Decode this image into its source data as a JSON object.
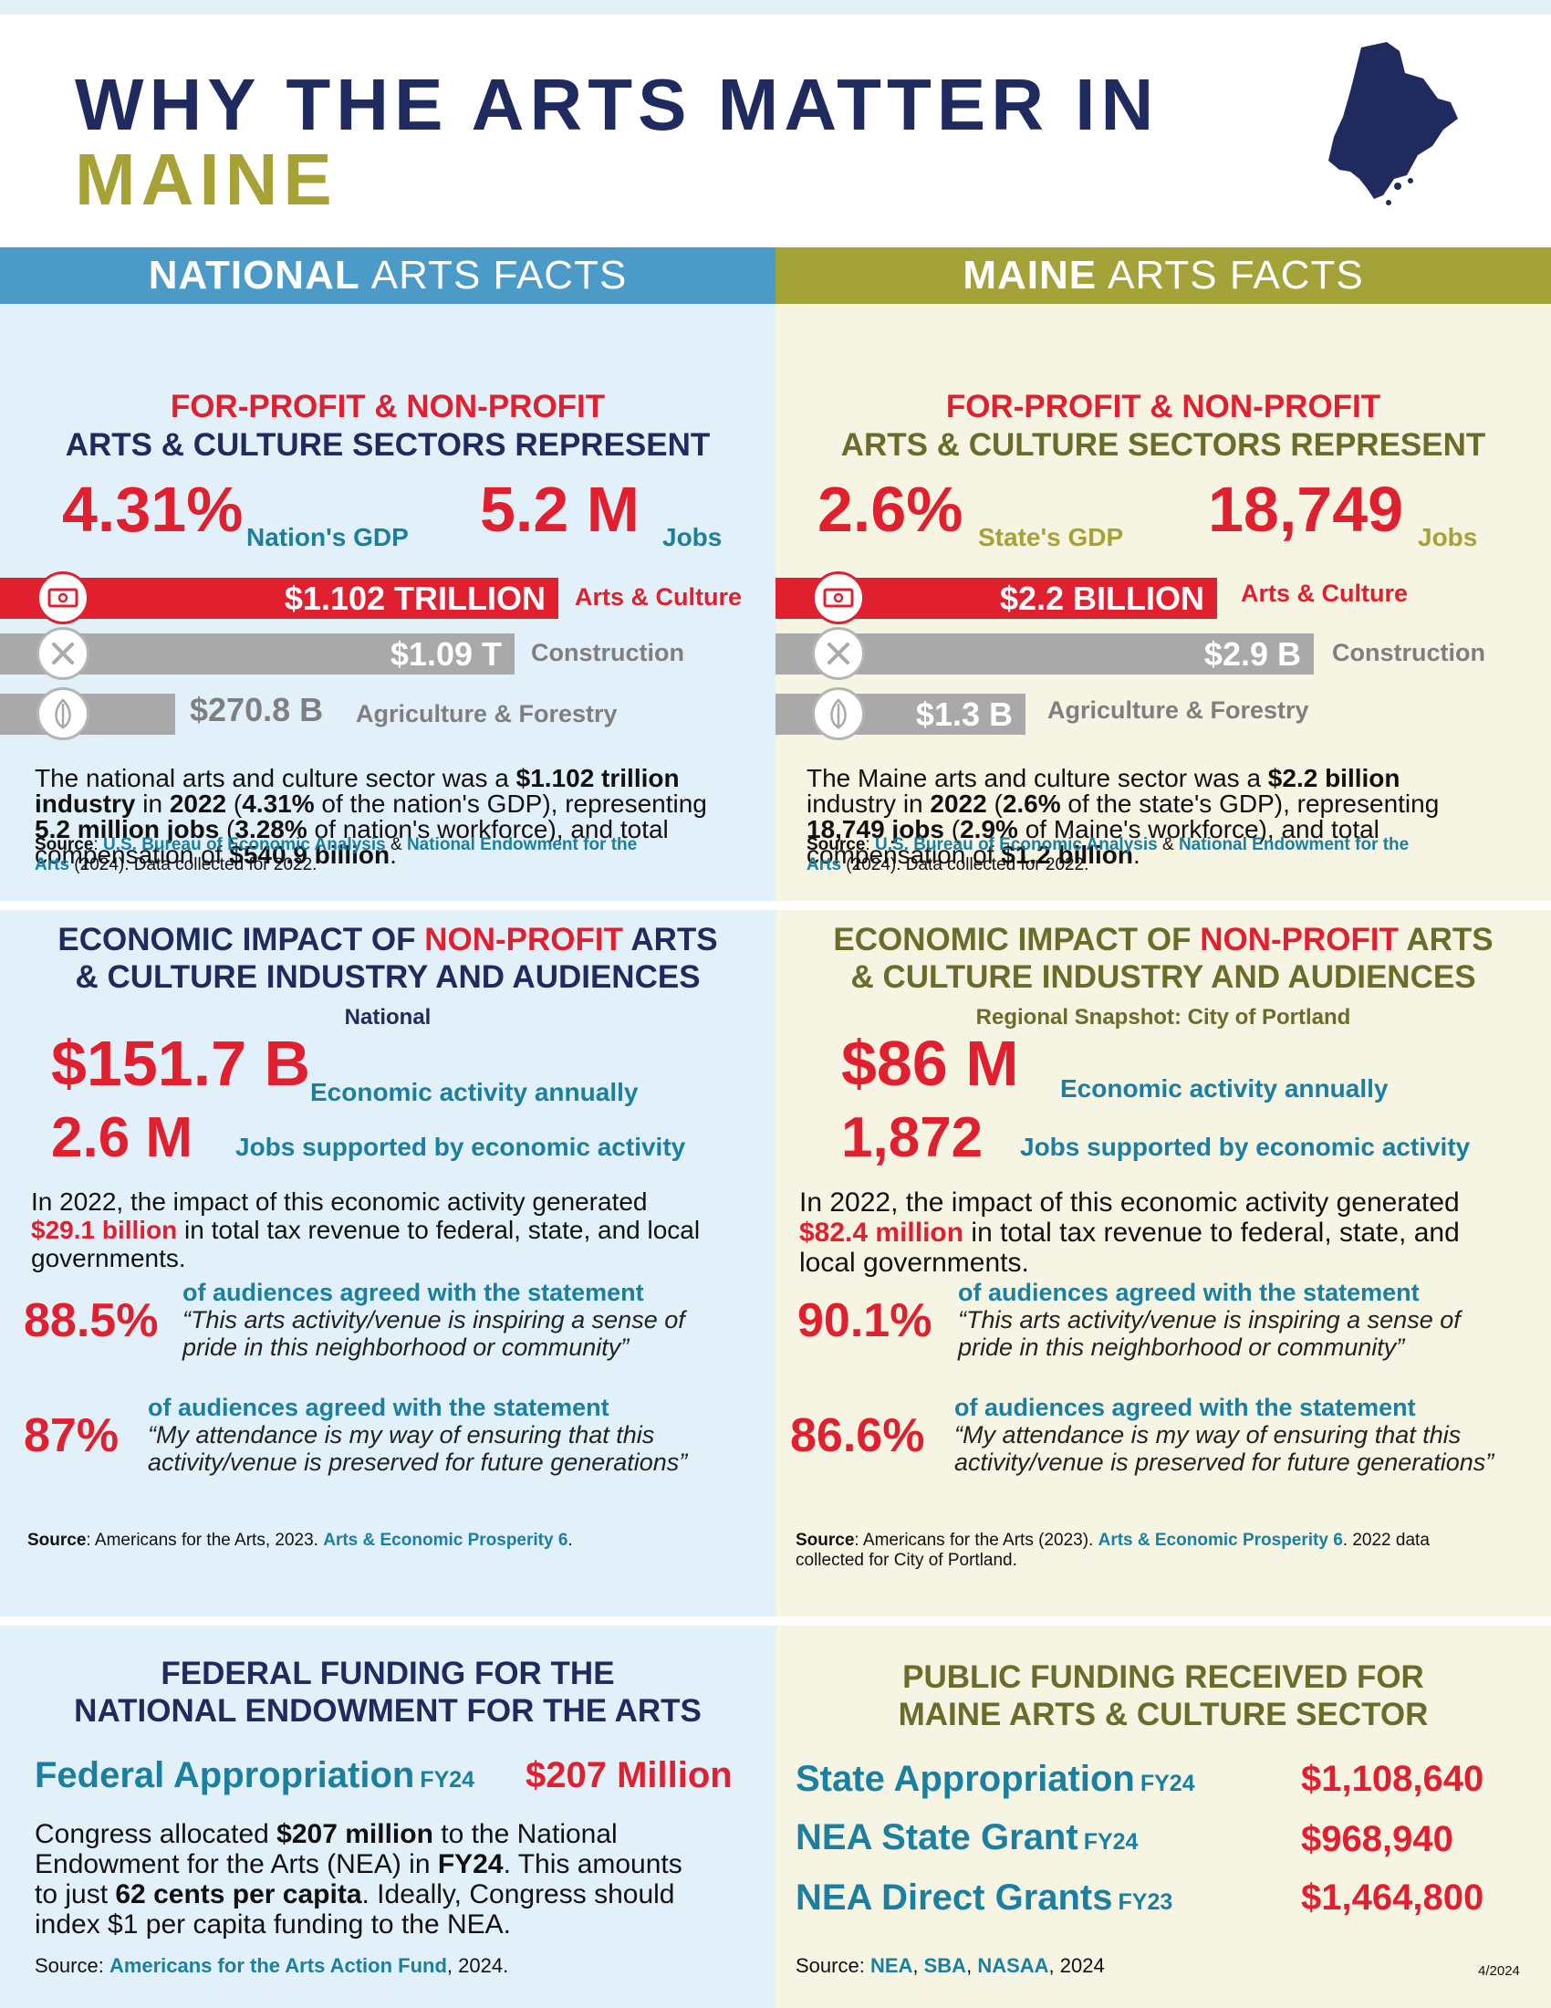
{
  "title": {
    "line1": "WHY THE ARTS MATTER IN",
    "line2": "MAINE"
  },
  "national": {
    "header_bold": "NATIONAL",
    "header_rest": "ARTS FACTS",
    "sectors": {
      "heading_red": "FOR-PROFIT & NON-PROFIT",
      "heading_navy": "ARTS & CULTURE SECTORS REPRESENT",
      "gdp_value": "4.31%",
      "gdp_label": "Nation's GDP",
      "jobs_value": "5.2 M",
      "jobs_label": "Jobs",
      "bars": [
        {
          "value": "$1.102 TRILLION",
          "label": "Arts & Culture",
          "icon": "money-icon"
        },
        {
          "value": "$1.09 T",
          "label": "Construction",
          "icon": "tools-icon"
        },
        {
          "value": "$270.8 B",
          "label": "Agriculture & Forestry",
          "icon": "leaf-icon"
        }
      ],
      "para": {
        "t1": "The national arts and culture sector was a ",
        "b1": "$1.102 trillion",
        "b2": "industry",
        "t2": " in ",
        "b3": "2022",
        "t3": " (",
        "b4": "4.31%",
        "t4": " of the nation's GDP),  representing",
        "b5": "5.2 million jobs",
        "t5": " (",
        "b6": "3.28%",
        "t6": " of nation's workforce), and total",
        "t7": "compensation of ",
        "b7": "$540.9 billion",
        "t8": "."
      },
      "source": {
        "label": "Source",
        "link1": "U.S. Bureau of Economic Analysis",
        "amp": " & ",
        "link2a": "National Endowment for the",
        "link2b": "Arts",
        "rest": " (2024). Data collected for 2022."
      }
    },
    "impact": {
      "heading_a": "ECONOMIC IMPACT OF ",
      "heading_red": "NON-PROFIT",
      "heading_b": " ARTS",
      "heading_line2": "& CULTURE INDUSTRY AND AUDIENCES",
      "subheading": "National",
      "econ_value": "$151.7 B",
      "econ_label": "Economic activity annually",
      "jobs_value": "2.6 M",
      "jobs_label": "Jobs supported by economic activity",
      "tax_t1": "In 2022, the impact of this economic activity generated",
      "tax_red": "$29.1 billion",
      "tax_t2": " in total tax revenue to federal, state, and local",
      "tax_t3": "governments.",
      "agree1_pct": "88.5%",
      "agree1_lead": "of audiences agreed with the statement",
      "agree1_q1": "“This arts activity/venue is inspiring a sense of",
      "agree1_q2": "pride in this neighborhood or community”",
      "agree2_pct": "87%",
      "agree2_lead": "of audiences agreed with the statement",
      "agree2_q1": "“My attendance is my way of ensuring that this",
      "agree2_q2": "activity/venue is preserved for future generations”",
      "source_label": "Source",
      "source_text": ": Americans for the Arts, 2023. ",
      "source_link": "Arts & Economic Prosperity 6",
      "source_end": "."
    },
    "funding": {
      "heading1": "FEDERAL FUNDING FOR THE",
      "heading2": "NATIONAL ENDOWMENT FOR THE ARTS",
      "label": "Federal Appropriation",
      "fy": "FY24",
      "value": "$207 Million",
      "p_t1": "Congress allocated ",
      "p_b1": "$207 million",
      "p_t2": " to the National",
      "p_t3": "Endowment for the Arts (NEA) in ",
      "p_b2": "FY24",
      "p_t4": ". This amounts",
      "p_t5": "to just ",
      "p_b3": "62 cents per capita",
      "p_t6": ". Ideally, Congress should",
      "p_t7": "index $1 per capita funding to the NEA.",
      "source_label": "Source: ",
      "source_link": "Americans for the Arts Action Fund",
      "source_end": ", 2024."
    }
  },
  "maine": {
    "header_bold": "MAINE",
    "header_rest": "ARTS FACTS",
    "sectors": {
      "heading_red": "FOR-PROFIT & NON-PROFIT",
      "heading_olive": "ARTS & CULTURE SECTORS REPRESENT",
      "gdp_value": "2.6%",
      "gdp_label": "State's GDP",
      "jobs_value": "18,749",
      "jobs_label": "Jobs",
      "bars": [
        {
          "value": "$2.2 BILLION",
          "label": "Arts & Culture",
          "icon": "money-icon"
        },
        {
          "value": "$2.9 B",
          "label": "Construction",
          "icon": "tools-icon"
        },
        {
          "value": "$1.3 B",
          "label": "Agriculture & Forestry",
          "icon": "leaf-icon"
        }
      ],
      "para": {
        "t1": "The Maine arts and culture sector was a ",
        "b1": "$2.2 billion",
        "t2": "industry in ",
        "b2": "2022",
        "t3": " (",
        "b3": "2.6%",
        "t4": " of the state's GDP), representing",
        "b4": "18,749 jobs",
        "t5": " (",
        "b5": "2.9%",
        "t6": " of Maine's workforce), and total",
        "t7": "compensation of ",
        "b6": "$1.2 billion",
        "t8": "."
      },
      "source": {
        "label": "Source",
        "link1": "U.S. Bureau of Economic Analysis",
        "amp": " & ",
        "link2a": "National Endowment for the",
        "link2b": "Arts",
        "rest": " (2024). Data collected for 2022."
      }
    },
    "impact": {
      "heading_a": "ECONOMIC IMPACT OF ",
      "heading_red": "NON-PROFIT",
      "heading_b": " ARTS",
      "heading_line2": "& CULTURE INDUSTRY AND AUDIENCES",
      "subheading": "Regional Snapshot: City of Portland",
      "econ_value": "$86 M",
      "econ_label": "Economic activity annually",
      "jobs_value": "1,872",
      "jobs_label": "Jobs supported by economic activity",
      "tax_t1": "In 2022, the impact of this economic activity generated",
      "tax_red": "$82.4 million",
      "tax_t2": " in total tax revenue to federal, state, and",
      "tax_t3": "local governments.",
      "agree1_pct": "90.1%",
      "agree1_lead": "of audiences agreed with the statement",
      "agree1_q1": "“This arts activity/venue is inspiring a sense of",
      "agree1_q2": "pride in this neighborhood or community”",
      "agree2_pct": "86.6%",
      "agree2_lead": "of audiences agreed with the statement",
      "agree2_q1": "“My attendance is my way of ensuring that this",
      "agree2_q2": "activity/venue is preserved for future generations”",
      "source_label": "Source",
      "source_text": ": Americans for the Arts (2023). ",
      "source_link": "Arts & Economic Prosperity 6",
      "source_end": ". 2022 data",
      "source_line2": "collected for City of Portland."
    },
    "funding": {
      "heading1": "PUBLIC FUNDING RECEIVED FOR",
      "heading2": "MAINE ARTS & CULTURE SECTOR",
      "rows": [
        {
          "label": "State Appropriation",
          "fy": "FY24",
          "value": "$1,108,640"
        },
        {
          "label": "NEA State Grant",
          "fy": "FY24",
          "value": "$968,940"
        },
        {
          "label": "NEA Direct Grants",
          "fy": "FY23",
          "value": "$1,464,800"
        }
      ],
      "source_label": "Source: ",
      "src_nea": "NEA",
      "src_sep1": ", ",
      "src_sba": "SBA",
      "src_sep2": ", ",
      "src_nasaa": "NASAA",
      "src_end": ", 2024",
      "date": "4/2024"
    }
  },
  "colors": {
    "navy": "#1f2b5e",
    "olive": "#a6a235",
    "red": "#e0202e",
    "teal": "#1a7fa0",
    "blue_header": "#4b9ac7",
    "olive_header": "#a3a33a"
  }
}
